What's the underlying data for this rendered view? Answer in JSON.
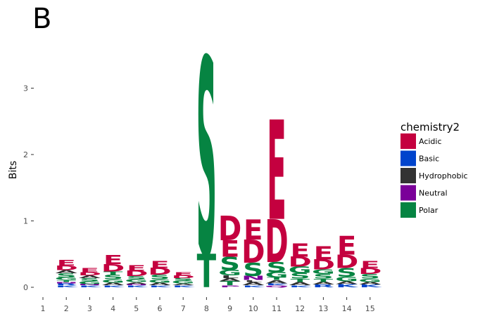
{
  "panel_label": "B",
  "colors": {
    "Acidic": "#c4003f",
    "Basic": "#0044cc",
    "Hydrophobic": "#333333",
    "Neutral": "#7a0099",
    "Polar": "#068442"
  },
  "chart_data": {
    "type": "sequence-logo",
    "title": "",
    "xlabel": "",
    "ylabel": "Bits",
    "xlim": [
      0.5,
      15.5
    ],
    "ylim": [
      -0.15,
      3.55
    ],
    "x_ticks": [
      "1",
      "2",
      "3",
      "4",
      "5",
      "6",
      "7",
      "8",
      "9",
      "10",
      "11",
      "12",
      "13",
      "14",
      "15"
    ],
    "y_ticks": [
      0,
      1,
      2,
      3
    ],
    "legend": {
      "title": "chemistry2",
      "position": "right",
      "entries": [
        "Acidic",
        "Basic",
        "Hydrophobic",
        "Neutral",
        "Polar"
      ]
    },
    "positions": [
      {
        "pos": 2,
        "stack": [
          {
            "letter": "K",
            "class": "Basic",
            "bits": 0.03
          },
          {
            "letter": "R",
            "class": "Basic",
            "bits": 0.03
          },
          {
            "letter": "N",
            "class": "Neutral",
            "bits": 0.02
          },
          {
            "letter": "T",
            "class": "Polar",
            "bits": 0.03
          },
          {
            "letter": "G",
            "class": "Polar",
            "bits": 0.04
          },
          {
            "letter": "S",
            "class": "Polar",
            "bits": 0.06
          },
          {
            "letter": "A",
            "class": "Hydrophobic",
            "bits": 0.05
          },
          {
            "letter": "D",
            "class": "Acidic",
            "bits": 0.07
          },
          {
            "letter": "E",
            "class": "Acidic",
            "bits": 0.08
          }
        ]
      },
      {
        "pos": 3,
        "stack": [
          {
            "letter": "K",
            "class": "Basic",
            "bits": 0.03
          },
          {
            "letter": "N",
            "class": "Neutral",
            "bits": 0.02
          },
          {
            "letter": "G",
            "class": "Polar",
            "bits": 0.04
          },
          {
            "letter": "S",
            "class": "Polar",
            "bits": 0.05
          },
          {
            "letter": "A",
            "class": "Hydrophobic",
            "bits": 0.04
          },
          {
            "letter": "D",
            "class": "Acidic",
            "bits": 0.05
          },
          {
            "letter": "E",
            "class": "Acidic",
            "bits": 0.06
          }
        ]
      },
      {
        "pos": 4,
        "stack": [
          {
            "letter": "K",
            "class": "Basic",
            "bits": 0.03
          },
          {
            "letter": "A",
            "class": "Hydrophobic",
            "bits": 0.04
          },
          {
            "letter": "G",
            "class": "Polar",
            "bits": 0.05
          },
          {
            "letter": "S",
            "class": "Polar",
            "bits": 0.07
          },
          {
            "letter": "T",
            "class": "Polar",
            "bits": 0.05
          },
          {
            "letter": "D",
            "class": "Acidic",
            "bits": 0.11
          },
          {
            "letter": "E",
            "class": "Acidic",
            "bits": 0.14
          }
        ]
      },
      {
        "pos": 5,
        "stack": [
          {
            "letter": "K",
            "class": "Basic",
            "bits": 0.03
          },
          {
            "letter": "N",
            "class": "Neutral",
            "bits": 0.02
          },
          {
            "letter": "A",
            "class": "Hydrophobic",
            "bits": 0.03
          },
          {
            "letter": "G",
            "class": "Polar",
            "bits": 0.04
          },
          {
            "letter": "S",
            "class": "Polar",
            "bits": 0.05
          },
          {
            "letter": "D",
            "class": "Acidic",
            "bits": 0.08
          },
          {
            "letter": "E",
            "class": "Acidic",
            "bits": 0.08
          }
        ]
      },
      {
        "pos": 6,
        "stack": [
          {
            "letter": "K",
            "class": "Basic",
            "bits": 0.03
          },
          {
            "letter": "A",
            "class": "Hydrophobic",
            "bits": 0.04
          },
          {
            "letter": "G",
            "class": "Polar",
            "bits": 0.05
          },
          {
            "letter": "S",
            "class": "Polar",
            "bits": 0.07
          },
          {
            "letter": "D",
            "class": "Acidic",
            "bits": 0.1
          },
          {
            "letter": "E",
            "class": "Acidic",
            "bits": 0.1
          }
        ]
      },
      {
        "pos": 7,
        "stack": [
          {
            "letter": "K",
            "class": "Basic",
            "bits": 0.03
          },
          {
            "letter": "A",
            "class": "Hydrophobic",
            "bits": 0.03
          },
          {
            "letter": "G",
            "class": "Polar",
            "bits": 0.04
          },
          {
            "letter": "S",
            "class": "Polar",
            "bits": 0.04
          },
          {
            "letter": "D",
            "class": "Acidic",
            "bits": 0.04
          },
          {
            "letter": "E",
            "class": "Acidic",
            "bits": 0.05
          }
        ]
      },
      {
        "pos": 8,
        "stack": [
          {
            "letter": "T",
            "class": "Polar",
            "bits": 0.5
          },
          {
            "letter": "S",
            "class": "Polar",
            "bits": 2.98
          }
        ]
      },
      {
        "pos": 9,
        "stack": [
          {
            "letter": "P",
            "class": "Neutral",
            "bits": 0.03
          },
          {
            "letter": "T",
            "class": "Polar",
            "bits": 0.06
          },
          {
            "letter": "A",
            "class": "Hydrophobic",
            "bits": 0.05
          },
          {
            "letter": "L",
            "class": "Hydrophobic",
            "bits": 0.04
          },
          {
            "letter": "G",
            "class": "Polar",
            "bits": 0.08
          },
          {
            "letter": "S",
            "class": "Polar",
            "bits": 0.2
          },
          {
            "letter": "E",
            "class": "Acidic",
            "bits": 0.25
          },
          {
            "letter": "D",
            "class": "Acidic",
            "bits": 0.37
          }
        ]
      },
      {
        "pos": 10,
        "stack": [
          {
            "letter": "K",
            "class": "Basic",
            "bits": 0.03
          },
          {
            "letter": "A",
            "class": "Hydrophobic",
            "bits": 0.05
          },
          {
            "letter": "L",
            "class": "Hydrophobic",
            "bits": 0.03
          },
          {
            "letter": "N",
            "class": "Neutral",
            "bits": 0.06
          },
          {
            "letter": "S",
            "class": "Polar",
            "bits": 0.2
          },
          {
            "letter": "D",
            "class": "Acidic",
            "bits": 0.35
          },
          {
            "letter": "E",
            "class": "Acidic",
            "bits": 0.3
          }
        ]
      },
      {
        "pos": 11,
        "stack": [
          {
            "letter": "Q",
            "class": "Neutral",
            "bits": 0.03
          },
          {
            "letter": "K",
            "class": "Basic",
            "bits": 0.03
          },
          {
            "letter": "A",
            "class": "Hydrophobic",
            "bits": 0.05
          },
          {
            "letter": "T",
            "class": "Polar",
            "bits": 0.04
          },
          {
            "letter": "G",
            "class": "Polar",
            "bits": 0.08
          },
          {
            "letter": "S",
            "class": "Polar",
            "bits": 0.15
          },
          {
            "letter": "D",
            "class": "Acidic",
            "bits": 0.65
          },
          {
            "letter": "E",
            "class": "Acidic",
            "bits": 1.5
          }
        ]
      },
      {
        "pos": 12,
        "stack": [
          {
            "letter": "K",
            "class": "Basic",
            "bits": 0.03
          },
          {
            "letter": "A",
            "class": "Hydrophobic",
            "bits": 0.05
          },
          {
            "letter": "T",
            "class": "Polar",
            "bits": 0.05
          },
          {
            "letter": "S",
            "class": "Polar",
            "bits": 0.08
          },
          {
            "letter": "G",
            "class": "Polar",
            "bits": 0.1
          },
          {
            "letter": "D",
            "class": "Acidic",
            "bits": 0.15
          },
          {
            "letter": "E",
            "class": "Acidic",
            "bits": 0.2
          }
        ]
      },
      {
        "pos": 13,
        "stack": [
          {
            "letter": "R",
            "class": "Basic",
            "bits": 0.04
          },
          {
            "letter": "A",
            "class": "Hydrophobic",
            "bits": 0.04
          },
          {
            "letter": "T",
            "class": "Polar",
            "bits": 0.05
          },
          {
            "letter": "S",
            "class": "Polar",
            "bits": 0.07
          },
          {
            "letter": "G",
            "class": "Polar",
            "bits": 0.07
          },
          {
            "letter": "D",
            "class": "Acidic",
            "bits": 0.15
          },
          {
            "letter": "E",
            "class": "Acidic",
            "bits": 0.2
          }
        ]
      },
      {
        "pos": 14,
        "stack": [
          {
            "letter": "K",
            "class": "Basic",
            "bits": 0.05
          },
          {
            "letter": "A",
            "class": "Hydrophobic",
            "bits": 0.04
          },
          {
            "letter": "G",
            "class": "Polar",
            "bits": 0.07
          },
          {
            "letter": "S",
            "class": "Polar",
            "bits": 0.13
          },
          {
            "letter": "D",
            "class": "Acidic",
            "bits": 0.2
          },
          {
            "letter": "E",
            "class": "Acidic",
            "bits": 0.28
          }
        ]
      },
      {
        "pos": 15,
        "stack": [
          {
            "letter": "K",
            "class": "Basic",
            "bits": 0.04
          },
          {
            "letter": "A",
            "class": "Hydrophobic",
            "bits": 0.04
          },
          {
            "letter": "G",
            "class": "Polar",
            "bits": 0.05
          },
          {
            "letter": "S",
            "class": "Polar",
            "bits": 0.07
          },
          {
            "letter": "D",
            "class": "Acidic",
            "bits": 0.09
          },
          {
            "letter": "E",
            "class": "Acidic",
            "bits": 0.1
          }
        ]
      }
    ]
  }
}
